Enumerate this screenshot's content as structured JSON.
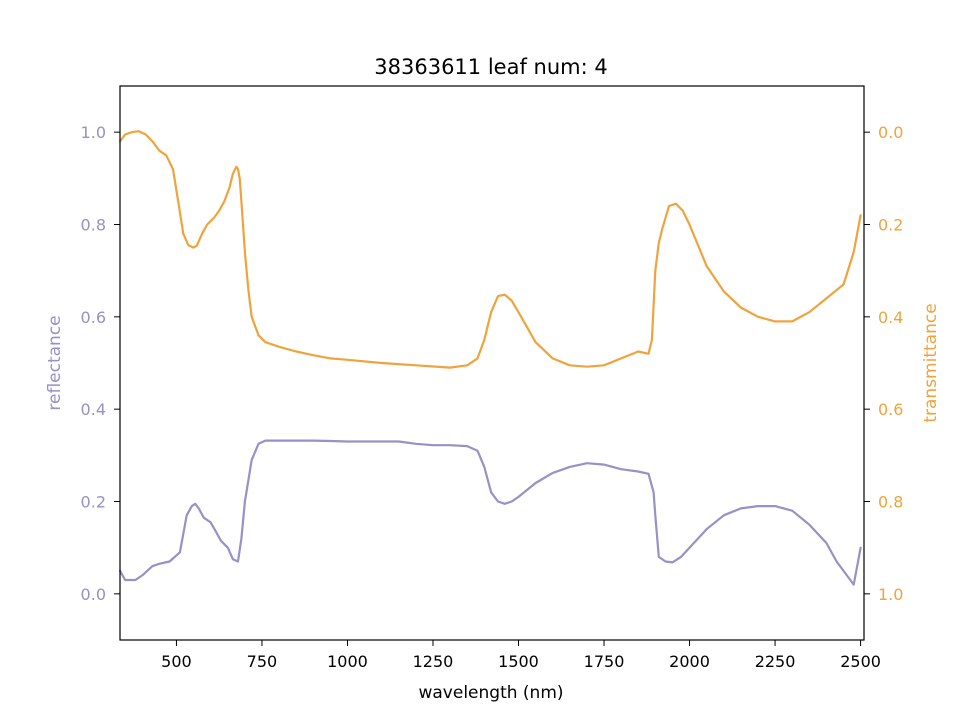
{
  "chart_data": {
    "type": "line",
    "title": "38363611 leaf num: 4",
    "xlabel": "wavelength (nm)",
    "xlim": [
      335,
      2510
    ],
    "x_ticks": [
      500,
      750,
      1000,
      1250,
      1500,
      1750,
      2000,
      2250,
      2500
    ],
    "axes": {
      "left": {
        "label": "reflectance",
        "ylim": [
          -0.1,
          1.1
        ],
        "ticks": [
          0.0,
          0.2,
          0.4,
          0.6,
          0.8,
          1.0
        ],
        "color": "#9691c6"
      },
      "right": {
        "label": "transmittance",
        "ylim": [
          1.1,
          -0.1
        ],
        "inverted": true,
        "ticks": [
          0.0,
          0.2,
          0.4,
          0.6,
          0.8,
          1.0
        ],
        "color": "#f0a33d"
      }
    },
    "grid": false,
    "legend": "none",
    "series": [
      {
        "axis": "left",
        "color": "#9691c6",
        "x": [
          335,
          350,
          380,
          400,
          430,
          450,
          480,
          510,
          530,
          545,
          555,
          565,
          580,
          600,
          615,
          630,
          650,
          665,
          680,
          690,
          700,
          720,
          740,
          760,
          800,
          850,
          900,
          950,
          1000,
          1050,
          1100,
          1150,
          1200,
          1250,
          1300,
          1350,
          1380,
          1400,
          1420,
          1440,
          1460,
          1480,
          1500,
          1550,
          1600,
          1650,
          1700,
          1750,
          1800,
          1850,
          1880,
          1895,
          1900,
          1910,
          1930,
          1950,
          1975,
          2000,
          2050,
          2100,
          2150,
          2200,
          2250,
          2300,
          2350,
          2400,
          2430,
          2460,
          2480,
          2490,
          2500
        ],
        "values": [
          0.05,
          0.03,
          0.03,
          0.04,
          0.06,
          0.065,
          0.07,
          0.09,
          0.17,
          0.19,
          0.195,
          0.185,
          0.165,
          0.155,
          0.135,
          0.115,
          0.1,
          0.075,
          0.07,
          0.12,
          0.2,
          0.29,
          0.325,
          0.332,
          0.332,
          0.332,
          0.332,
          0.331,
          0.33,
          0.33,
          0.33,
          0.33,
          0.325,
          0.322,
          0.322,
          0.32,
          0.31,
          0.275,
          0.22,
          0.2,
          0.195,
          0.2,
          0.21,
          0.24,
          0.262,
          0.275,
          0.283,
          0.28,
          0.27,
          0.265,
          0.26,
          0.22,
          0.17,
          0.08,
          0.07,
          0.068,
          0.08,
          0.1,
          0.14,
          0.17,
          0.185,
          0.19,
          0.19,
          0.18,
          0.15,
          0.11,
          0.07,
          0.04,
          0.02,
          0.06,
          0.1
        ]
      },
      {
        "axis": "right",
        "color": "#f0a33d",
        "x": [
          335,
          350,
          370,
          390,
          410,
          430,
          450,
          470,
          490,
          505,
          520,
          535,
          550,
          560,
          575,
          590,
          610,
          625,
          640,
          655,
          665,
          675,
          680,
          685,
          690,
          700,
          710,
          720,
          740,
          760,
          800,
          850,
          900,
          950,
          1000,
          1100,
          1200,
          1300,
          1350,
          1380,
          1400,
          1420,
          1440,
          1460,
          1480,
          1500,
          1550,
          1600,
          1650,
          1700,
          1750,
          1800,
          1850,
          1880,
          1890,
          1900,
          1910,
          1920,
          1940,
          1960,
          1980,
          2000,
          2050,
          2100,
          2150,
          2200,
          2250,
          2300,
          2350,
          2400,
          2450,
          2480,
          2500
        ],
        "values": [
          0.02,
          0.005,
          0.0,
          -0.002,
          0.005,
          0.02,
          0.04,
          0.05,
          0.08,
          0.15,
          0.22,
          0.245,
          0.25,
          0.245,
          0.22,
          0.2,
          0.185,
          0.17,
          0.15,
          0.12,
          0.09,
          0.075,
          0.08,
          0.1,
          0.15,
          0.26,
          0.34,
          0.4,
          0.44,
          0.455,
          0.465,
          0.475,
          0.483,
          0.49,
          0.493,
          0.5,
          0.505,
          0.51,
          0.505,
          0.49,
          0.45,
          0.39,
          0.355,
          0.352,
          0.365,
          0.39,
          0.455,
          0.49,
          0.505,
          0.508,
          0.505,
          0.49,
          0.475,
          0.48,
          0.45,
          0.3,
          0.24,
          0.21,
          0.16,
          0.155,
          0.17,
          0.2,
          0.29,
          0.345,
          0.38,
          0.4,
          0.41,
          0.41,
          0.39,
          0.36,
          0.33,
          0.26,
          0.18
        ]
      }
    ]
  }
}
